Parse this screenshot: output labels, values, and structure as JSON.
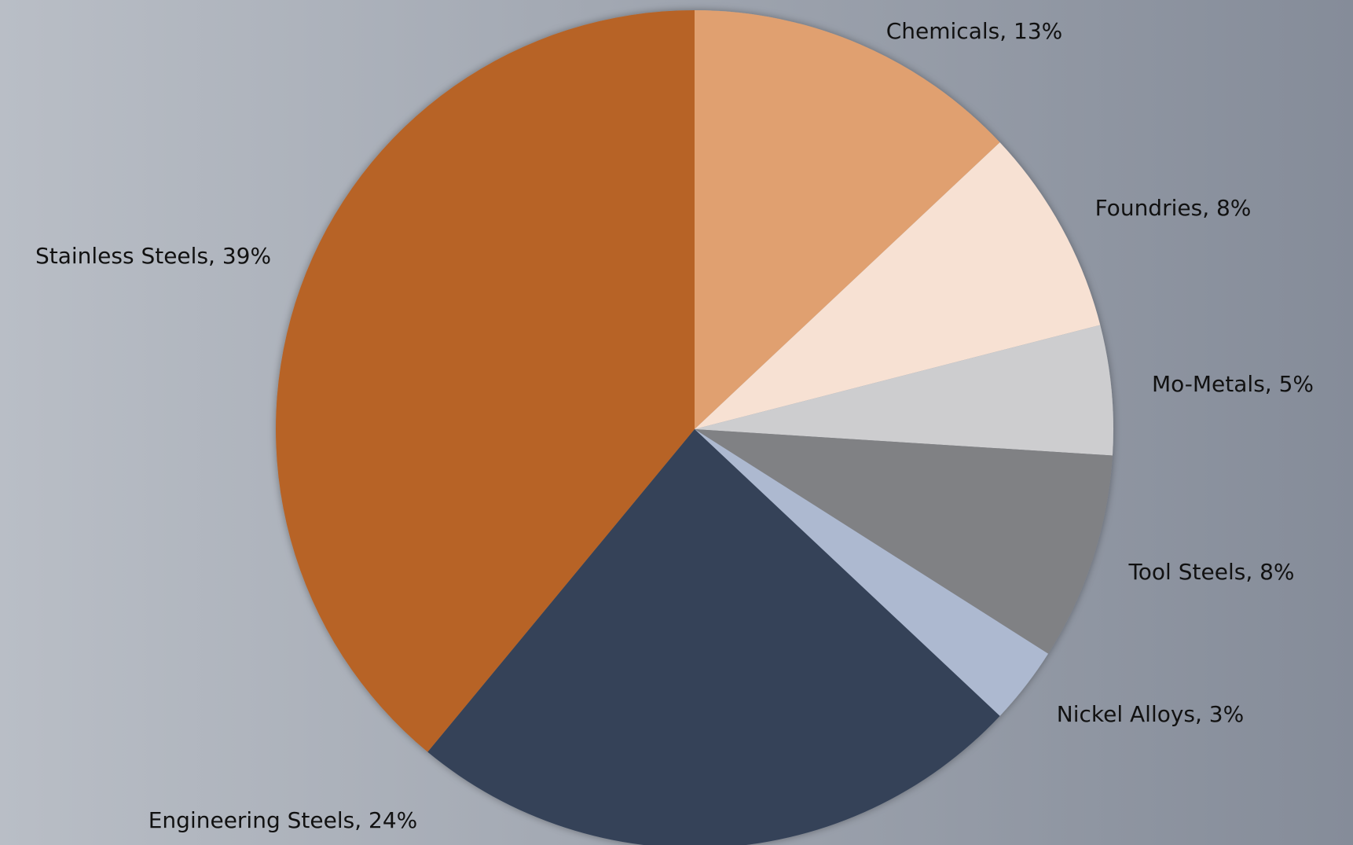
{
  "chart_data": {
    "type": "pie",
    "categories": [
      "Chemicals",
      "Foundries",
      "Mo-Metals",
      "Tool Steels",
      "Nickel Alloys",
      "Engineering Steels",
      "Stainless Steels"
    ],
    "values": [
      13,
      8,
      5,
      8,
      3,
      24,
      39
    ],
    "value_labels": [
      "Chemicals, 13%",
      "Foundries, 8%",
      "Mo-Metals, 5%",
      "Tool Steels, 8%",
      "Nickel Alloys, 3%",
      "Engineering Steels, 24%",
      "Stainless Steels, 39%"
    ],
    "colors": [
      "#e0a070",
      "#f7e1d3",
      "#cdcdcf",
      "#808184",
      "#adb9d0",
      "#344259",
      "#b76428"
    ]
  }
}
